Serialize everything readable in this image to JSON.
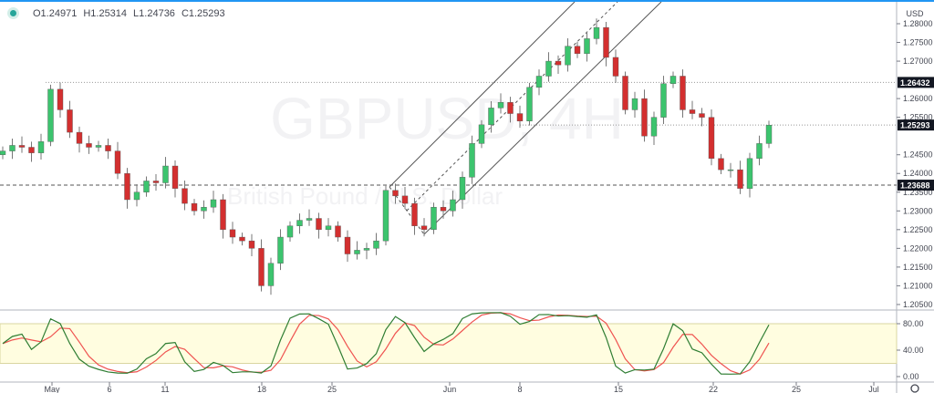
{
  "legend": {
    "open": "O1.24971",
    "high": "H1.25314",
    "low": "L1.24736",
    "close": "C1.25293"
  },
  "watermark": {
    "symbol": "GBPUSD, 4H",
    "description": "British Pound / U.S. Dollar"
  },
  "currency": "USD",
  "colors": {
    "up": "#26a69a",
    "up_body": "#3cc46e",
    "down": "#d32f2f",
    "stoch_k": "#2e7d32",
    "stoch_d": "#ef5350",
    "band": "#fffde0",
    "accent": "#2196f3"
  },
  "chart_data": [
    {
      "type": "candlestick",
      "ylim": [
        1.2025,
        1.2825
      ],
      "y_ticks": [
        "1.28000",
        "1.27500",
        "1.27000",
        "1.26000",
        "1.25500",
        "1.24500",
        "1.24000",
        "1.23500",
        "1.23000",
        "1.22500",
        "1.22000",
        "1.21500",
        "1.21000",
        "1.20500"
      ],
      "x_ticks": [
        "May",
        "6",
        "11",
        "18",
        "25",
        "Jun",
        "8",
        "15",
        "22",
        "25",
        "Jul"
      ],
      "closes": [
        1.246,
        1.2475,
        1.247,
        1.2455,
        1.2485,
        1.2625,
        1.257,
        1.251,
        1.248,
        1.247,
        1.2475,
        1.246,
        1.24,
        1.233,
        1.235,
        1.238,
        1.2375,
        1.242,
        1.236,
        1.232,
        1.23,
        1.231,
        1.233,
        1.225,
        1.223,
        1.222,
        1.22,
        1.21,
        1.216,
        1.223,
        1.226,
        1.2275,
        1.228,
        1.225,
        1.226,
        1.223,
        1.2185,
        1.2195,
        1.22,
        1.222,
        1.2355,
        1.234,
        1.232,
        1.226,
        1.225,
        1.231,
        1.23,
        1.233,
        1.239,
        1.248,
        1.253,
        1.2575,
        1.259,
        1.256,
        1.254,
        1.263,
        1.266,
        1.27,
        1.269,
        1.274,
        1.272,
        1.276,
        1.279,
        1.271,
        1.266,
        1.257,
        1.26,
        1.25,
        1.255,
        1.264,
        1.266,
        1.257,
        1.256,
        1.255,
        1.244,
        1.241,
        1.241,
        1.236,
        1.244,
        1.248,
        1.2529
      ],
      "price_labels": [
        {
          "label": "1.26432",
          "value": 1.26432,
          "style": "dotted"
        },
        {
          "label": "1.25293",
          "value": 1.25293,
          "style": "dotted"
        },
        {
          "label": "1.23688",
          "value": 1.23688,
          "style": "dashed"
        }
      ]
    },
    {
      "type": "line",
      "ylim": [
        0,
        100
      ],
      "band": [
        20,
        80
      ],
      "y_ticks": [
        "80.00",
        "40.00",
        "0.00"
      ]
    }
  ]
}
